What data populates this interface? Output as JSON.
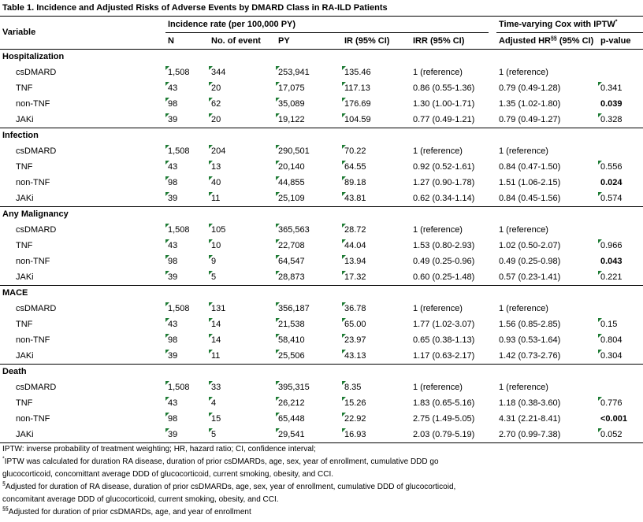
{
  "title": "Table 1. Incidence and Adjusted Risks of Adverse Events by DMARD Class in RA-ILD Patients",
  "header": {
    "variable": "Variable",
    "incidence": "Incidence rate (per 100,000 PY)",
    "cox": {
      "text": "Time-varying Cox with IPTW",
      "sup": "*"
    },
    "columns": [
      "N",
      "No. of event",
      "PY",
      "IR (95% CI)",
      "IRR (95% CI)"
    ],
    "hr": {
      "text": "Adjusted HR",
      "sup": "§§",
      "after": " (95% CI)"
    },
    "p": "p-value"
  },
  "sections": [
    {
      "name": "Hospitalization",
      "rows": [
        {
          "label": "csDMARD",
          "n": "1,508",
          "events": "344",
          "py": "253,941",
          "ir": "135.46",
          "irr": "1 (reference)",
          "hr": "1 (reference)"
        },
        {
          "label": "TNF",
          "n": "43",
          "events": "20",
          "py": "17,075",
          "ir": "117.13",
          "irr": "0.86 (0.55-1.36)",
          "hr": "0.79 (0.49-1.28)",
          "p": "0.341"
        },
        {
          "label": "non-TNF",
          "n": "98",
          "events": "62",
          "py": "35,089",
          "ir": "176.69",
          "irr": "1.30 (1.00-1.71)",
          "hr": "1.35 (1.02-1.80)",
          "p": "0.039",
          "p_bold": true
        },
        {
          "label": "JAKi",
          "n": "39",
          "events": "20",
          "py": "19,122",
          "ir": "104.59",
          "irr": "0.77 (0.49-1.21)",
          "hr": "0.79 (0.49-1.27)",
          "p": "0.328"
        }
      ]
    },
    {
      "name": "Infection",
      "rows": [
        {
          "label": "csDMARD",
          "n": "1,508",
          "events": "204",
          "py": "290,501",
          "ir": "70.22",
          "irr": "1 (reference)",
          "hr": "1 (reference)"
        },
        {
          "label": "TNF",
          "n": "43",
          "events": "13",
          "py": "20,140",
          "ir": "64.55",
          "irr": "0.92 (0.52-1.61)",
          "hr": "0.84 (0.47-1.50)",
          "p": "0.556"
        },
        {
          "label": "non-TNF",
          "n": "98",
          "events": "40",
          "py": "44,855",
          "ir": "89.18",
          "irr": "1.27 (0.90-1.78)",
          "hr": "1.51 (1.06-2.15)",
          "p": "0.024",
          "p_bold": true
        },
        {
          "label": "JAKi",
          "n": "39",
          "events": "11",
          "py": "25,109",
          "ir": "43.81",
          "irr": "0.62 (0.34-1.14)",
          "hr": "0.84 (0.45-1.56)",
          "p": "0.574"
        }
      ]
    },
    {
      "name": "Any Malignancy",
      "rows": [
        {
          "label": "csDMARD",
          "n": "1,508",
          "events": "105",
          "py": "365,563",
          "ir": "28.72",
          "irr": "1 (reference)",
          "hr": "1 (reference)"
        },
        {
          "label": "TNF",
          "n": "43",
          "events": "10",
          "py": "22,708",
          "ir": "44.04",
          "irr": "1.53 (0.80-2.93)",
          "hr": "1.02 (0.50-2.07)",
          "p": "0.966"
        },
        {
          "label": "non-TNF",
          "n": "98",
          "events": "9",
          "py": "64,547",
          "ir": "13.94",
          "irr": "0.49 (0.25-0.96)",
          "hr": "0.49 (0.25-0.98)",
          "p": "0.043",
          "p_bold": true
        },
        {
          "label": "JAKi",
          "n": "39",
          "events": "5",
          "py": "28,873",
          "ir": "17.32",
          "irr": "0.60 (0.25-1.48)",
          "hr": "0.57 (0.23-1.41)",
          "p": "0.221"
        }
      ]
    },
    {
      "name": "MACE",
      "rows": [
        {
          "label": "csDMARD",
          "n": "1,508",
          "events": "131",
          "py": "356,187",
          "ir": "36.78",
          "irr": "1 (reference)",
          "hr": "1 (reference)"
        },
        {
          "label": "TNF",
          "n": "43",
          "events": "14",
          "py": "21,538",
          "ir": "65.00",
          "irr": "1.77 (1.02-3.07)",
          "hr": "1.56 (0.85-2.85)",
          "p": "0.15"
        },
        {
          "label": "non-TNF",
          "n": "98",
          "events": "14",
          "py": "58,410",
          "ir": "23.97",
          "irr": "0.65 (0.38-1.13)",
          "hr": "0.93 (0.53-1.64)",
          "p": "0.804"
        },
        {
          "label": "JAKi",
          "n": "39",
          "events": "11",
          "py": "25,506",
          "ir": "43.13",
          "irr": "1.17 (0.63-2.17)",
          "hr": "1.42 (0.73-2.76)",
          "p": "0.304"
        }
      ]
    },
    {
      "name": "Death",
      "rows": [
        {
          "label": "csDMARD",
          "n": "1,508",
          "events": "33",
          "py": "395,315",
          "ir": "8.35",
          "irr": "1 (reference)",
          "hr": "1 (reference)"
        },
        {
          "label": "TNF",
          "n": "43",
          "events": "4",
          "py": "26,212",
          "ir": "15.26",
          "irr": "1.83 (0.65-5.16)",
          "hr": "1.18 (0.38-3.60)",
          "p": "0.776"
        },
        {
          "label": "non-TNF",
          "n": "98",
          "events": "15",
          "py": "65,448",
          "ir": "22.92",
          "irr": "2.75 (1.49-5.05)",
          "hr": "4.31 (2.21-8.41)",
          "p": "<0.001",
          "p_bold": true
        },
        {
          "label": "JAKi",
          "n": "39",
          "events": "5",
          "py": "29,541",
          "ir": "16.93",
          "irr": "2.03 (0.79-5.19)",
          "hr": "2.70 (0.99-7.38)",
          "p": "0.052"
        }
      ]
    }
  ],
  "footnotes": [
    {
      "text": "IPTW: inverse probability of treatment weighting; HR, hazard ratio; CI, confidence interval;"
    },
    {
      "sup": "*",
      "text": "IPTW was calculated for duration RA disease, duration of prior csDMARDs, age, sex, year of enrollment, cumulative DDD go"
    },
    {
      "text": "glucocorticoid, concomittant average DDD of glucocorticoid, current smoking, obesity, and CCI."
    },
    {
      "sup": "§",
      "text": "Adjusted for duration of RA disease, duration of prior csDMARDs, age, sex, year of enrollment, cumulative DDD of glucocorticoid,"
    },
    {
      "text": "concomitant average DDD of glucocorticoid, current smoking, obesity, and CCI."
    },
    {
      "sup": "§§",
      "text": "Adjusted for duration of prior csDMARDs, age, and year of enrollment"
    }
  ]
}
